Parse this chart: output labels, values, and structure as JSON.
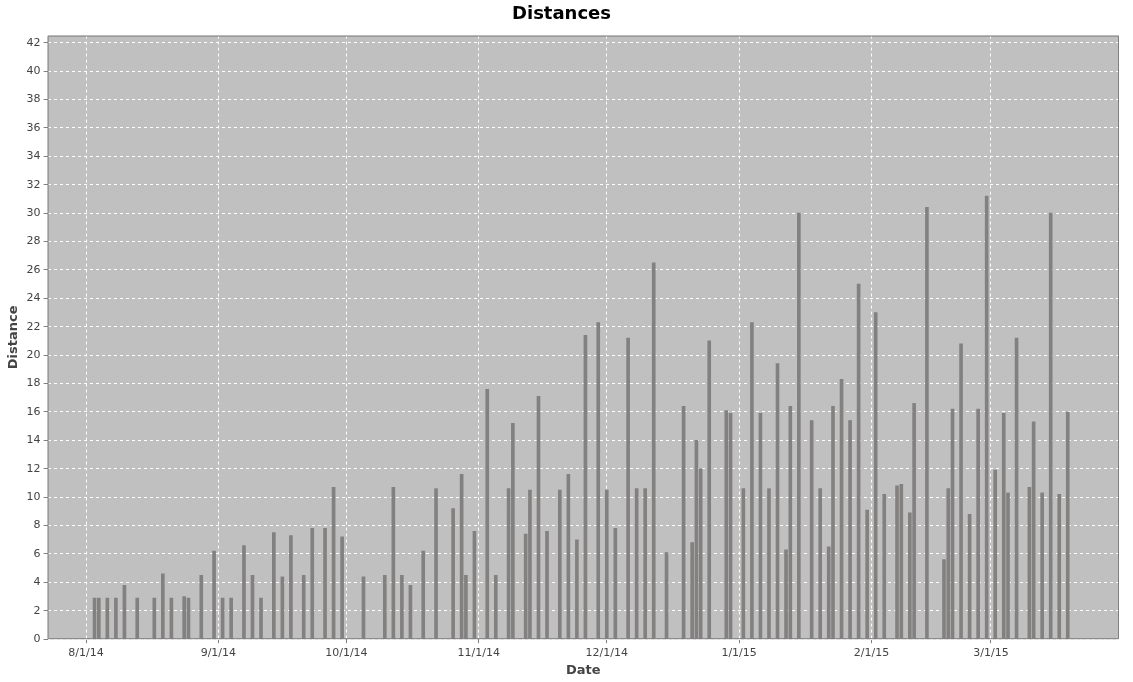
{
  "chart_data": {
    "type": "bar",
    "title": "Distances",
    "xlabel": "Date",
    "ylabel": "Distance",
    "color": "#838080",
    "grid": true,
    "xlim": [
      "2014-07-23",
      "2015-03-31"
    ],
    "xticks": [
      {
        "value": "2014-08-01",
        "label": "8/1/14"
      },
      {
        "value": "2014-09-01",
        "label": "9/1/14"
      },
      {
        "value": "2014-10-01",
        "label": "10/1/14"
      },
      {
        "value": "2014-11-01",
        "label": "11/1/14"
      },
      {
        "value": "2014-12-01",
        "label": "12/1/14"
      },
      {
        "value": "2015-01-01",
        "label": "1/1/15"
      },
      {
        "value": "2015-02-01",
        "label": "2/1/15"
      },
      {
        "value": "2015-03-01",
        "label": "3/1/15"
      }
    ],
    "ylim": [
      0,
      42.5
    ],
    "yticks": [
      0,
      2,
      4,
      6,
      8,
      10,
      12,
      14,
      16,
      18,
      20,
      22,
      24,
      26,
      28,
      30,
      32,
      34,
      36,
      38,
      40,
      42
    ],
    "x": [
      "2014-08-03",
      "2014-08-04",
      "2014-08-06",
      "2014-08-08",
      "2014-08-10",
      "2014-08-13",
      "2014-08-17",
      "2014-08-19",
      "2014-08-21",
      "2014-08-24",
      "2014-08-25",
      "2014-08-28",
      "2014-08-31",
      "2014-09-02",
      "2014-09-04",
      "2014-09-07",
      "2014-09-09",
      "2014-09-11",
      "2014-09-14",
      "2014-09-16",
      "2014-09-18",
      "2014-09-21",
      "2014-09-23",
      "2014-09-26",
      "2014-09-28",
      "2014-09-30",
      "2014-10-05",
      "2014-10-10",
      "2014-10-12",
      "2014-10-14",
      "2014-10-16",
      "2014-10-19",
      "2014-10-22",
      "2014-10-26",
      "2014-10-28",
      "2014-10-29",
      "2014-10-31",
      "2014-11-03",
      "2014-11-05",
      "2014-11-08",
      "2014-11-09",
      "2014-11-12",
      "2014-11-13",
      "2014-11-15",
      "2014-11-17",
      "2014-11-20",
      "2014-11-22",
      "2014-11-24",
      "2014-11-26",
      "2014-11-29",
      "2014-12-01",
      "2014-12-03",
      "2014-12-06",
      "2014-12-08",
      "2014-12-10",
      "2014-12-12",
      "2014-12-15",
      "2014-12-19",
      "2014-12-21",
      "2014-12-22",
      "2014-12-23",
      "2014-12-25",
      "2014-12-29",
      "2014-12-30",
      "2015-01-02",
      "2015-01-04",
      "2015-01-06",
      "2015-01-08",
      "2015-01-10",
      "2015-01-12",
      "2015-01-13",
      "2015-01-15",
      "2015-01-18",
      "2015-01-20",
      "2015-01-22",
      "2015-01-23",
      "2015-01-25",
      "2015-01-27",
      "2015-01-29",
      "2015-01-31",
      "2015-02-02",
      "2015-02-04",
      "2015-02-07",
      "2015-02-08",
      "2015-02-10",
      "2015-02-11",
      "2015-02-14",
      "2015-02-18",
      "2015-02-19",
      "2015-02-20",
      "2015-02-22",
      "2015-02-24",
      "2015-02-26",
      "2015-02-28",
      "2015-03-02",
      "2015-03-04",
      "2015-03-05",
      "2015-03-07",
      "2015-03-10",
      "2015-03-11",
      "2015-03-13",
      "2015-03-15",
      "2015-03-17",
      "2015-03-19"
    ],
    "values": [
      2.9,
      2.9,
      2.9,
      2.9,
      3.8,
      2.9,
      2.9,
      4.6,
      2.9,
      3.0,
      2.9,
      4.5,
      6.2,
      2.9,
      2.9,
      6.6,
      4.5,
      2.9,
      7.5,
      4.4,
      7.3,
      4.5,
      7.8,
      7.8,
      10.7,
      7.2,
      4.4,
      4.5,
      10.7,
      4.5,
      3.8,
      6.2,
      10.6,
      9.2,
      11.6,
      4.5,
      7.6,
      17.6,
      4.5,
      10.6,
      15.2,
      7.4,
      10.5,
      17.1,
      7.6,
      10.5,
      11.6,
      7.0,
      21.4,
      22.3,
      10.5,
      7.8,
      21.2,
      10.6,
      10.6,
      26.5,
      6.1,
      16.4,
      6.8,
      14.0,
      12.0,
      21.0,
      16.1,
      15.9,
      10.6,
      22.3,
      15.9,
      10.6,
      19.4,
      6.3,
      16.4,
      30.0,
      15.4,
      10.6,
      6.5,
      16.4,
      18.3,
      15.4,
      25.0,
      9.1,
      23.0,
      10.2,
      10.8,
      10.9,
      8.9,
      16.6,
      30.4,
      5.6,
      10.6,
      16.2,
      20.8,
      8.8,
      16.2,
      31.2,
      11.9,
      15.9,
      10.3,
      21.2,
      10.7,
      15.3,
      10.3,
      30.0,
      10.2,
      16.0
    ]
  }
}
